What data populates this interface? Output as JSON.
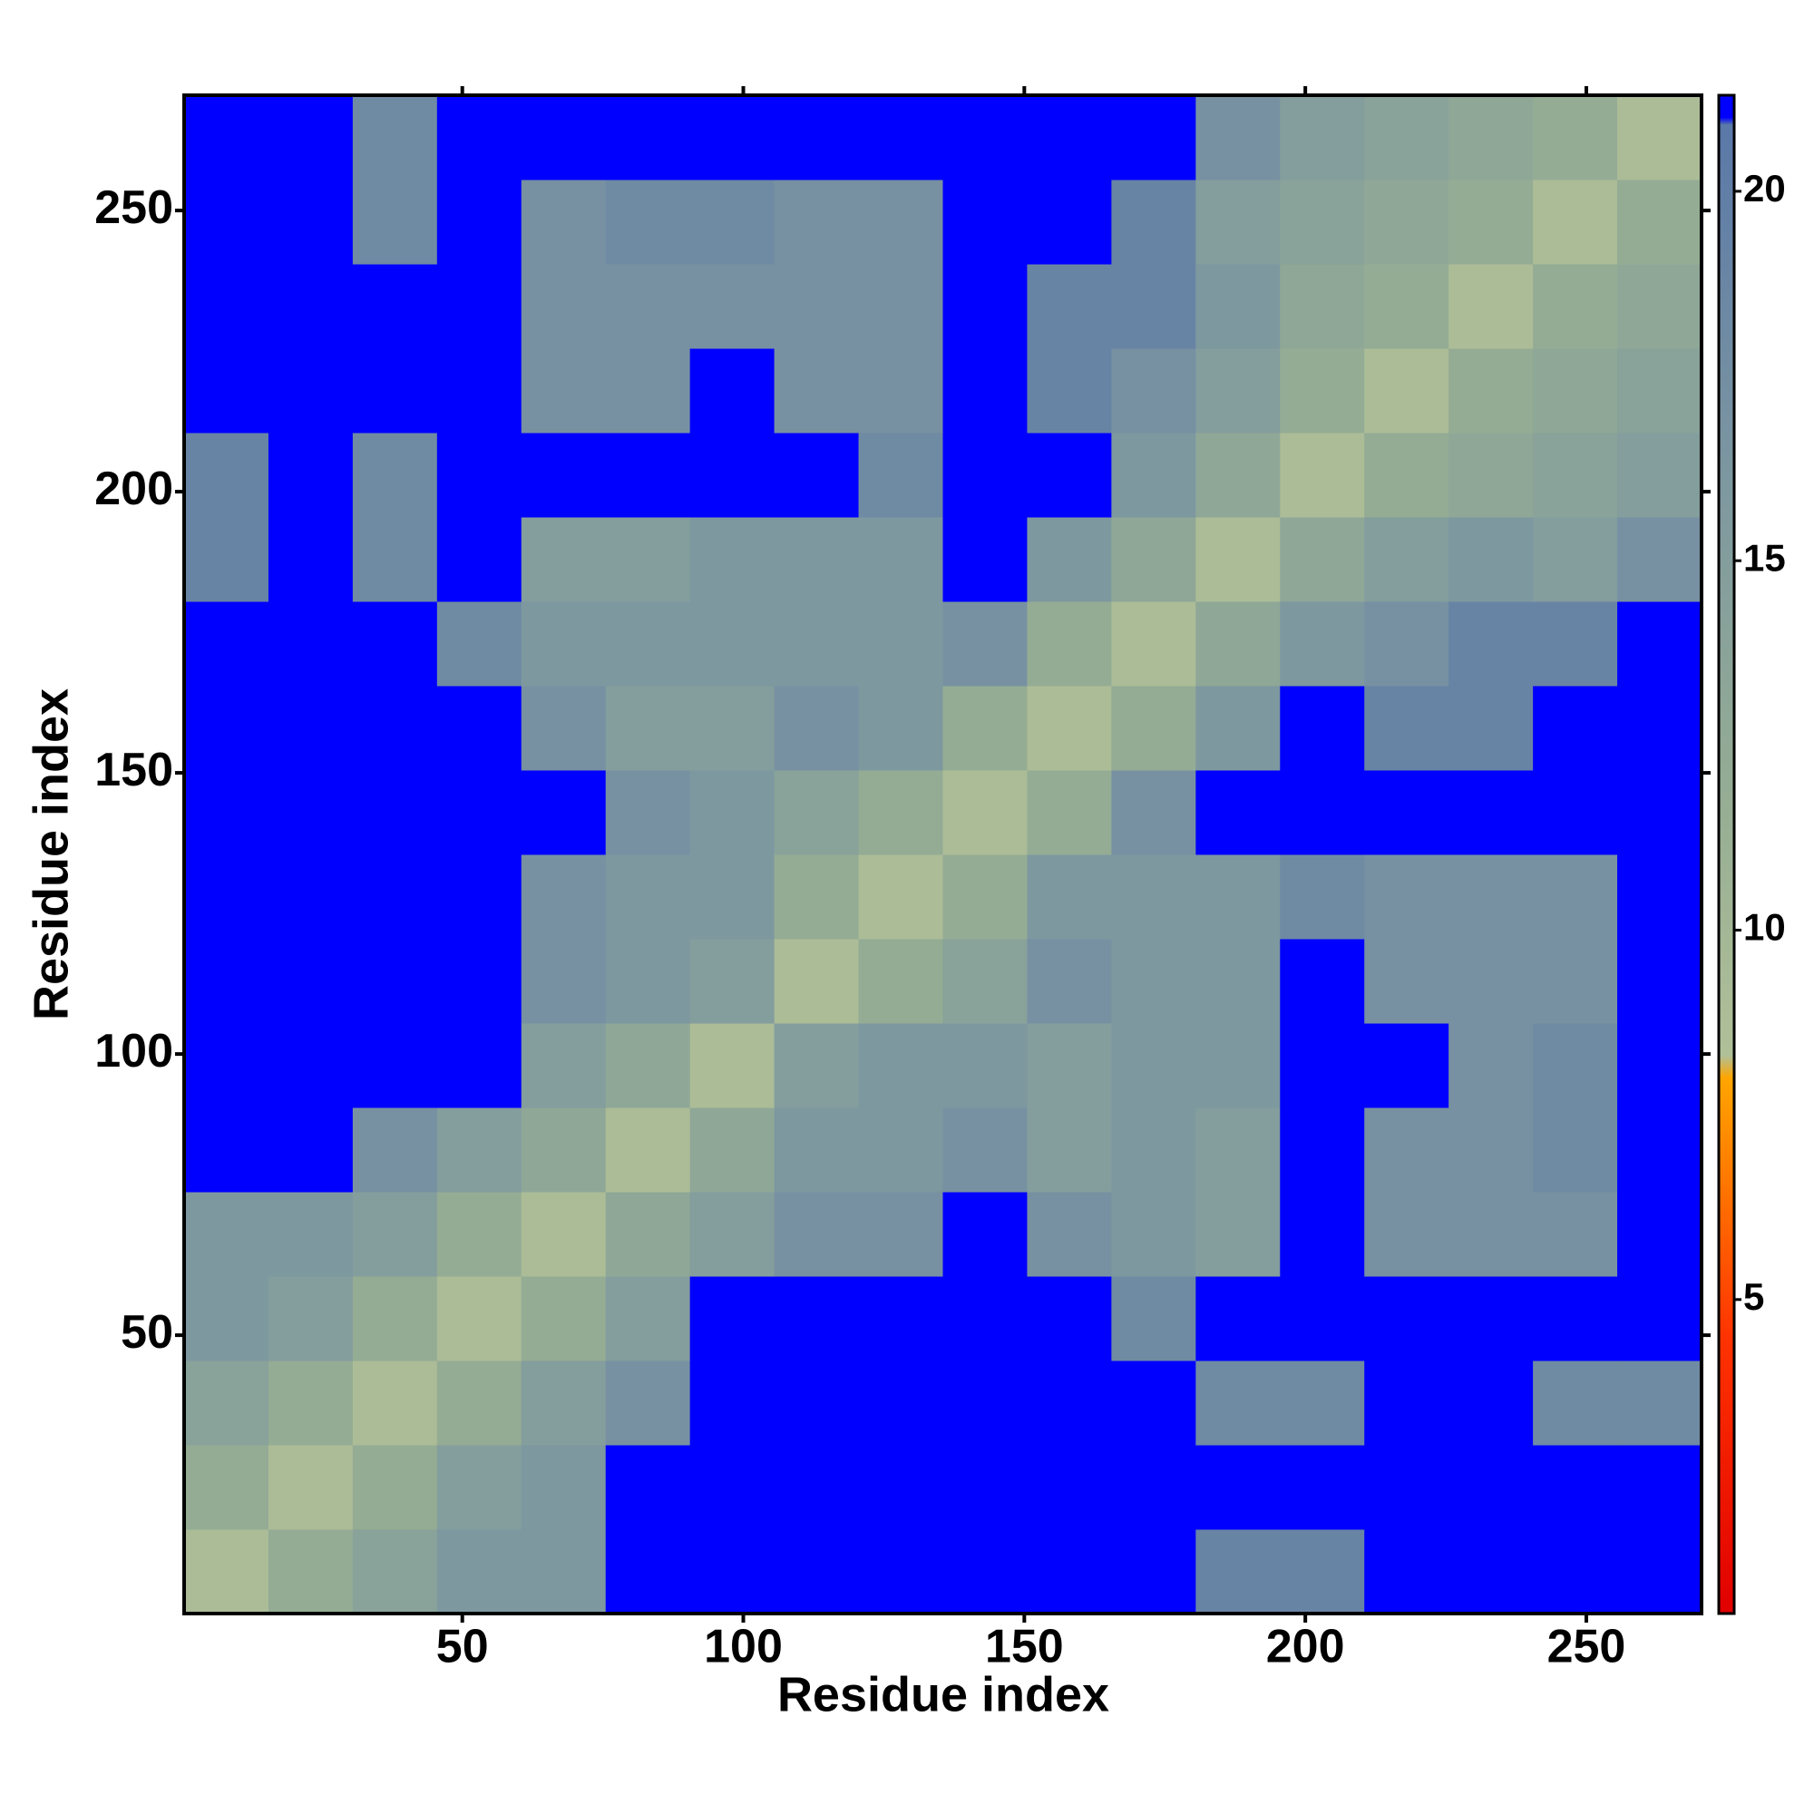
{
  "chart_data": {
    "type": "heatmap",
    "x_label": "Residue index",
    "y_label": "Residue index",
    "xlim": [
      0.5,
      270.5
    ],
    "ylim": [
      0.5,
      270.5
    ],
    "xticks": [
      50,
      100,
      150,
      200,
      250
    ],
    "yticks": [
      50,
      100,
      150,
      200,
      250
    ],
    "xbins": [
      0.5,
      15.5,
      30.5,
      45.5,
      60.5,
      75.5,
      90.5,
      105.5,
      120.5,
      135.5,
      150.5,
      165.5,
      180.5,
      195.5,
      210.5,
      225.5,
      240.5,
      255.5,
      270.5
    ],
    "ybins": [
      0.5,
      15.5,
      30.5,
      45.5,
      60.5,
      75.5,
      90.5,
      105.5,
      120.5,
      135.5,
      150.5,
      165.5,
      180.5,
      195.5,
      210.5,
      225.5,
      240.5,
      255.5,
      270.5
    ],
    "z": [
      [
        9,
        12,
        14,
        16,
        16,
        21,
        21,
        21,
        21,
        21,
        21,
        21,
        19,
        19,
        21,
        21,
        21,
        21
      ],
      [
        12,
        9,
        12,
        15,
        16,
        21,
        21,
        21,
        21,
        21,
        21,
        21,
        21,
        21,
        21,
        21,
        21,
        21
      ],
      [
        14,
        12,
        9,
        12,
        15,
        17,
        21,
        21,
        21,
        21,
        21,
        21,
        18,
        18,
        21,
        21,
        18,
        18
      ],
      [
        16,
        15,
        12,
        9,
        12,
        15,
        21,
        21,
        21,
        21,
        21,
        18,
        21,
        21,
        21,
        21,
        21,
        21
      ],
      [
        16,
        16,
        15,
        12,
        9,
        13,
        15,
        17,
        17,
        21,
        17,
        16,
        15,
        21,
        17,
        17,
        17,
        21
      ],
      [
        21,
        21,
        17,
        15,
        13,
        9,
        13,
        16,
        16,
        17,
        15,
        16,
        15,
        21,
        17,
        17,
        18,
        21
      ],
      [
        21,
        21,
        21,
        21,
        15,
        13,
        9,
        15,
        16,
        16,
        15,
        16,
        16,
        21,
        21,
        17,
        18,
        21
      ],
      [
        21,
        21,
        21,
        21,
        17,
        16,
        15,
        9,
        12,
        14,
        17,
        16,
        16,
        21,
        17,
        17,
        17,
        21
      ],
      [
        21,
        21,
        21,
        21,
        17,
        16,
        16,
        12,
        9,
        12,
        16,
        16,
        16,
        18,
        17,
        17,
        17,
        21
      ],
      [
        21,
        21,
        21,
        21,
        21,
        17,
        16,
        14,
        12,
        9,
        12,
        17,
        21,
        21,
        21,
        21,
        21,
        21
      ],
      [
        21,
        21,
        21,
        21,
        17,
        15,
        15,
        17,
        16,
        12,
        9,
        12,
        16,
        21,
        19,
        19,
        21,
        21
      ],
      [
        21,
        21,
        21,
        18,
        16,
        16,
        16,
        16,
        16,
        17,
        12,
        9,
        13,
        16,
        17,
        19,
        19,
        21
      ],
      [
        19,
        21,
        18,
        21,
        15,
        15,
        16,
        16,
        16,
        21,
        16,
        13,
        9,
        13,
        15,
        16,
        15,
        17
      ],
      [
        19,
        21,
        18,
        21,
        21,
        21,
        21,
        21,
        18,
        21,
        21,
        16,
        13,
        9,
        12,
        13,
        14,
        15
      ],
      [
        21,
        21,
        21,
        21,
        17,
        17,
        21,
        17,
        17,
        21,
        19,
        17,
        15,
        12,
        9,
        12,
        13,
        14
      ],
      [
        21,
        21,
        21,
        21,
        17,
        17,
        17,
        17,
        17,
        21,
        19,
        19,
        16,
        13,
        12,
        9,
        12,
        13
      ],
      [
        21,
        21,
        18,
        21,
        17,
        18,
        18,
        17,
        17,
        21,
        21,
        19,
        15,
        14,
        13,
        12,
        9,
        12
      ],
      [
        21,
        21,
        18,
        21,
        21,
        21,
        21,
        21,
        21,
        21,
        21,
        21,
        17,
        15,
        14,
        13,
        12,
        9
      ]
    ],
    "clim": [
      0.75,
      21.3
    ],
    "cticks": [
      5,
      10,
      15,
      20
    ],
    "colorscale": [
      [
        0.75,
        "#e00000"
      ],
      [
        4.5,
        "#ff3300"
      ],
      [
        8,
        "#ffa500"
      ],
      [
        8.3,
        "#b0c098"
      ],
      [
        12,
        "#94ac94"
      ],
      [
        16,
        "#7e98a0"
      ],
      [
        20.9,
        "#5a78a8"
      ],
      [
        21.0,
        "#0000ff"
      ],
      [
        21.3,
        "#0000ff"
      ]
    ]
  }
}
